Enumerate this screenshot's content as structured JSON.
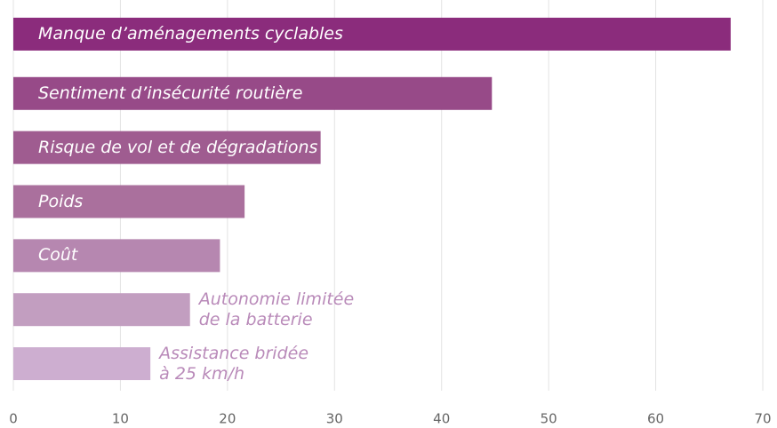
{
  "chart_data": {
    "type": "bar",
    "orientation": "horizontal",
    "categories": [
      "Manque d’aménagements cyclables",
      "Sentiment d’insécurité routière",
      "Risque de vol et de dégradations",
      "Poids",
      "Coût",
      "Autonomie limitée\nde la batterie",
      "Assistance bridée\nà 25 km/h"
    ],
    "values": [
      67,
      44.7,
      28.7,
      21.6,
      19.3,
      16.5,
      12.8
    ],
    "colors": [
      "#8b2c7c",
      "#974a88",
      "#9f5c90",
      "#aa709d",
      "#b687b0",
      "#c29ec0",
      "#cdaed0"
    ],
    "xlim": [
      0,
      70
    ],
    "xticks": [
      0,
      10,
      20,
      30,
      40,
      50,
      60,
      70
    ],
    "grid": true
  }
}
